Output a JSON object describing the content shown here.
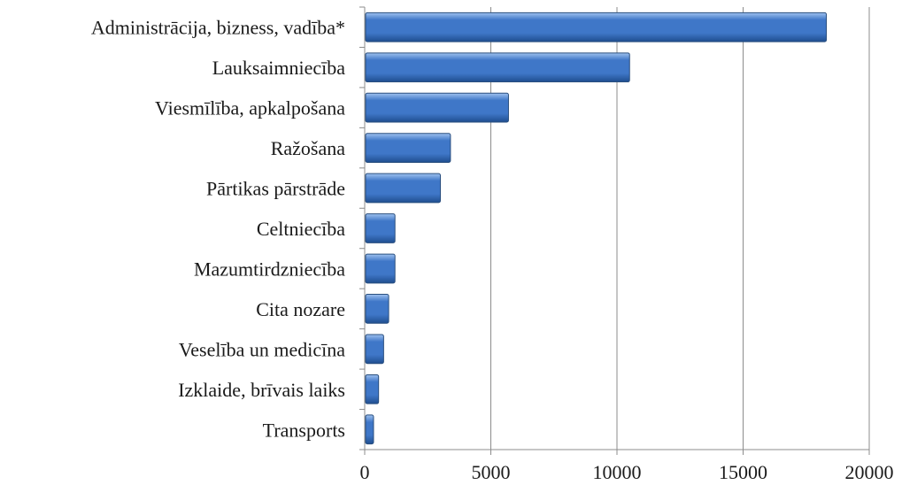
{
  "chart_data": {
    "type": "bar",
    "orientation": "horizontal",
    "categories": [
      "Administrācija, bizness, vadība*",
      "Lauksaimniecība",
      "Viesmīlība, apkalpošana",
      "Ražošana",
      "Pārtikas pārstrāde",
      "Celtniecība",
      "Mazumtirdzniecība",
      "Cita nozare",
      "Veselība un medicīna",
      "Izklaide, brīvais laiks",
      "Transports"
    ],
    "values": [
      18300,
      10500,
      5700,
      3400,
      3000,
      1200,
      1200,
      950,
      750,
      550,
      350
    ],
    "xlim": [
      0,
      20000
    ],
    "xticks": [
      "0",
      "5000",
      "10000",
      "15000",
      "20000"
    ],
    "xtick_values": [
      0,
      5000,
      10000,
      15000,
      20000
    ],
    "grid": true,
    "colors": {
      "bar_top": "#9ec1ef",
      "bar_mid": "#3f77c8",
      "bar_bottom": "#1f4e8f",
      "grid": "#8c8c8c"
    }
  }
}
